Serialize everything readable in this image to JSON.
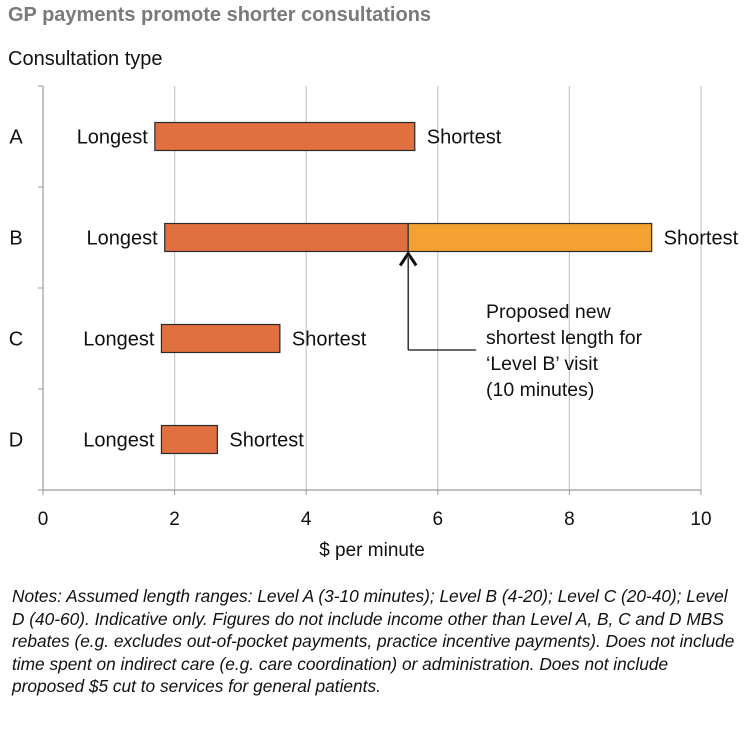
{
  "chart_data": {
    "type": "bar",
    "orientation": "horizontal",
    "title": "GP payments promote shorter consultations",
    "ylabel": "Consultation type",
    "xlabel": "$ per minute",
    "xlim": [
      0,
      10
    ],
    "xticks": [
      0,
      2,
      4,
      6,
      8,
      10
    ],
    "grid": true,
    "categories": [
      "A",
      "B",
      "C",
      "D"
    ],
    "ranges": [
      {
        "category": "A",
        "start": 1.7,
        "end": 5.65,
        "start_label": "Longest",
        "end_label": "Shortest"
      },
      {
        "category": "B",
        "start": 1.85,
        "end": 5.55,
        "start_label": "Longest",
        "end_label": "",
        "color": "#e07040"
      },
      {
        "category": "B",
        "start": 5.55,
        "end": 9.25,
        "start_label": "",
        "end_label": "Shortest",
        "color": "#f3a232"
      },
      {
        "category": "C",
        "start": 1.8,
        "end": 3.6,
        "start_label": "Longest",
        "end_label": "Shortest"
      },
      {
        "category": "D",
        "start": 1.8,
        "end": 2.65,
        "start_label": "Longest",
        "end_label": "Shortest"
      }
    ],
    "bar_color": "#e07040",
    "proposed_color": "#f3a232",
    "annotation": {
      "lines": [
        "Proposed new",
        "shortest length for",
        "‘Level B’ visit",
        "(10 minutes)"
      ],
      "x": 5.55,
      "category": "B"
    }
  },
  "notes": "Notes: Assumed length ranges: Level A (3-10 minutes); Level B (4-20); Level C (20-40); Level D (40-60). Indicative only. Figures do not include income other than Level A, B, C and D MBS rebates (e.g. excludes out-of-pocket payments, practice incentive payments). Does not include time spent on indirect care (e.g. care coordination) or administration. Does not include proposed $5 cut to services for general patients."
}
